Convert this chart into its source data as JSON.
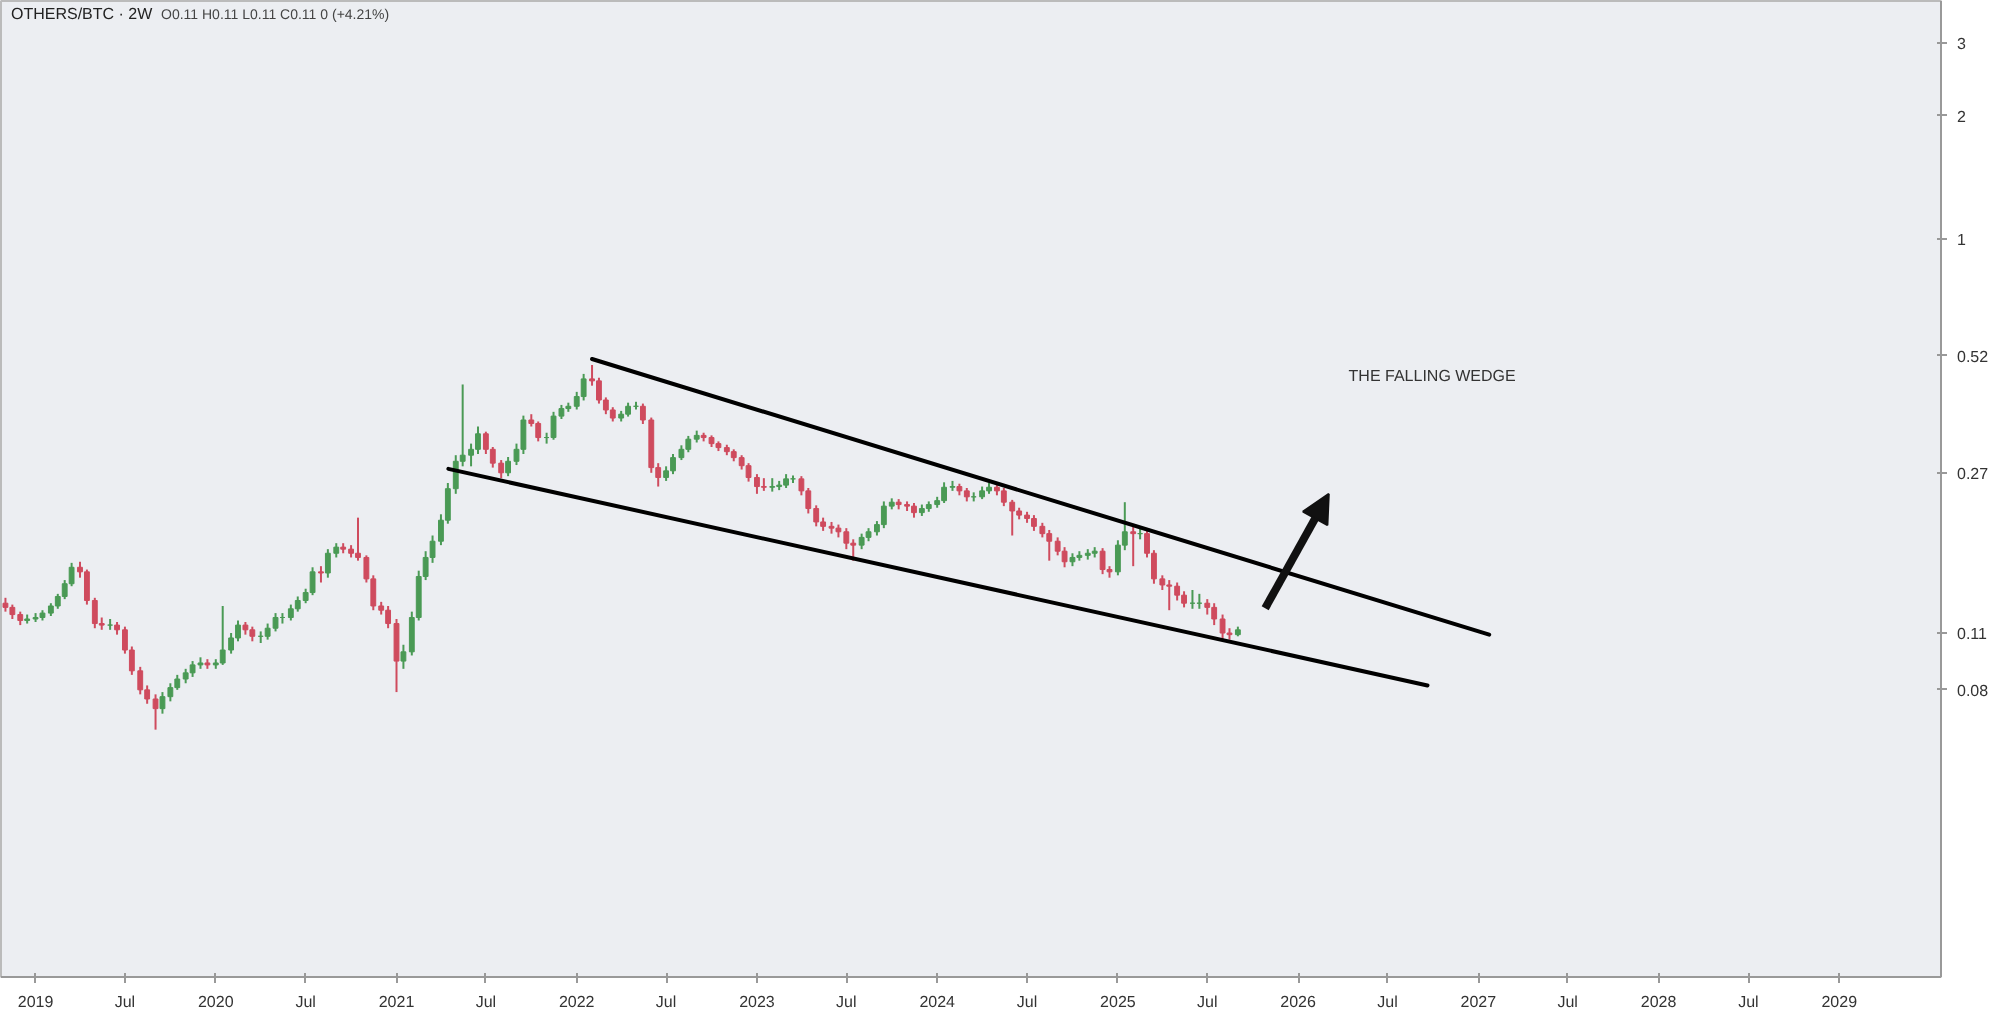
{
  "chart_data": {
    "type": "candlestick",
    "title": "OTHERS/BTC · 2W",
    "subtitle": "O0.11 H0.11 L0.11 C0.11 0 (+4.21%)",
    "log": true,
    "annotations": [
      "THE FALLING WEDGE"
    ],
    "xlim": [
      "2018-10-23",
      "2029-07-26"
    ],
    "ylim": [
      0.016,
      3.8
    ],
    "xticks": [
      {
        "value": "2019-01-01",
        "label": "2019"
      },
      {
        "value": "2019-07-01",
        "label": "Jul"
      },
      {
        "value": "2020-01-01",
        "label": "2020"
      },
      {
        "value": "2020-07-01",
        "label": "Jul"
      },
      {
        "value": "2021-01-01",
        "label": "2021"
      },
      {
        "value": "2021-07-01",
        "label": "Jul"
      },
      {
        "value": "2022-01-01",
        "label": "2022"
      },
      {
        "value": "2022-07-01",
        "label": "Jul"
      },
      {
        "value": "2023-01-01",
        "label": "2023"
      },
      {
        "value": "2023-07-01",
        "label": "Jul"
      },
      {
        "value": "2024-01-01",
        "label": "2024"
      },
      {
        "value": "2024-07-01",
        "label": "Jul"
      },
      {
        "value": "2025-01-01",
        "label": "2025"
      },
      {
        "value": "2025-07-01",
        "label": "Jul"
      },
      {
        "value": "2026-01-01",
        "label": "2026"
      },
      {
        "value": "2026-07-01",
        "label": "Jul"
      },
      {
        "value": "2027-01-01",
        "label": "2027"
      },
      {
        "value": "2027-07-01",
        "label": "Jul"
      },
      {
        "value": "2028-01-01",
        "label": "2028"
      },
      {
        "value": "2028-07-01",
        "label": "Jul"
      },
      {
        "value": "2029-01-01",
        "label": "2029"
      }
    ],
    "yticks": [
      3,
      2,
      1,
      0.52,
      0.27,
      0.11,
      0.08
    ],
    "series": [
      {
        "colors": [
          "#cf4b5e",
          "#cf4b5e",
          "#cf4b5e",
          "#4a9a55",
          "#4a9a55",
          "#4a9a55",
          "#4a9a55",
          "#4a9a55",
          "#4a9a55",
          "#4a9a55",
          "#cf4b5e",
          "#cf4b5e",
          "#cf4b5e",
          "#cf4b5e",
          "#4a9a55",
          "#cf4b5e",
          "#cf4b5e",
          "#cf4b5e",
          "#cf4b5e",
          "#cf4b5e",
          "#cf4b5e",
          "#4a9a55",
          "#4a9a55",
          "#4a9a55",
          "#4a9a55",
          "#4a9a55",
          "#4a9a55",
          "#cf4b5e",
          "#4a9a55",
          "#4a9a55",
          "#4a9a55",
          "#4a9a55",
          "#cf4b5e",
          "#cf4b5e",
          "#4a9a55",
          "#4a9a55",
          "#4a9a55",
          "#4a9a55",
          "#4a9a55",
          "#4a9a55",
          "#4a9a55",
          "#4a9a55",
          "#cf4b5e",
          "#4a9a55",
          "#4a9a55",
          "#cf4b5e",
          "#cf4b5e",
          "#cf4b5e",
          "#cf4b5e",
          "#cf4b5e",
          "#cf4b5e",
          "#cf4b5e",
          "#cf4b5e",
          "#4a9a55",
          "#4a9a55",
          "#4a9a55",
          "#4a9a55",
          "#4a9a55",
          "#4a9a55",
          "#4a9a55",
          "#4a9a55",
          "#4a9a55",
          "#4a9a55",
          "#4a9a55",
          "#cf4b5e",
          "#cf4b5e",
          "#cf4b5e",
          "#4a9a55",
          "#4a9a55",
          "#4a9a55",
          "#cf4b5e",
          "#cf4b5e",
          "#4a9a55",
          "#4a9a55",
          "#4a9a55",
          "#4a9a55",
          "#4a9a55",
          "#4a9a55",
          "#cf4b5e",
          "#cf4b5e",
          "#cf4b5e",
          "#cf4b5e",
          "#4a9a55",
          "#4a9a55",
          "#4a9a55",
          "#cf4b5e",
          "#cf4b5e",
          "#cf4b5e",
          "#4a9a55",
          "#4a9a55",
          "#4a9a55",
          "#4a9a55",
          "#4a9a55",
          "#cf4b5e",
          "#cf4b5e",
          "#cf4b5e",
          "#cf4b5e",
          "#cf4b5e",
          "#cf4b5e",
          "#cf4b5e",
          "#cf4b5e",
          "#cf4b5e",
          "#4a9a55",
          "#4a9a55",
          "#4a9a55",
          "#4a9a55",
          "#cf4b5e",
          "#cf4b5e",
          "#cf4b5e",
          "#cf4b5e",
          "#cf4b5e",
          "#cf4b5e",
          "#cf4b5e",
          "#cf4b5e",
          "#4a9a55",
          "#4a9a55",
          "#4a9a55",
          "#4a9a55",
          "#4a9a55",
          "#cf4b5e",
          "#cf4b5e",
          "#cf4b5e",
          "#4a9a55",
          "#4a9a55",
          "#4a9a55",
          "#4a9a55",
          "#4a9a55",
          "#cf4b5e",
          "#cf4b5e",
          "#4a9a55",
          "#4a9a55",
          "#4a9a55",
          "#cf4b5e",
          "#cf4b5e",
          "#cf4b5e",
          "#cf4b5e",
          "#cf4b5e",
          "#cf4b5e",
          "#cf4b5e",
          "#cf4b5e",
          "#cf4b5e",
          "#cf4b5e",
          "#4a9a55",
          "#4a9a55",
          "#4a9a55",
          "#4a9a55",
          "#cf4b5e",
          "#cf4b5e",
          "#4a9a55",
          "#4a9a55",
          "#cf4b5e",
          "#4a9a55",
          "#cf4b5e",
          "#cf4b5e",
          "#cf4b5e",
          "#cf4b5e",
          "#cf4b5e",
          "#cf4b5e",
          "#4a9a55",
          "#4a9a55",
          "#cf4b5e",
          "#cf4b5e",
          "#cf4b5e",
          "#cf4b5e",
          "#4a9a55"
        ],
        "x": [
          "2018-11-01",
          "2018-11-15",
          "2018-12-01",
          "2018-12-15",
          "2019-01-01",
          "2019-01-15",
          "2019-02-01",
          "2019-02-15",
          "2019-03-01",
          "2019-03-15",
          "2019-04-01",
          "2019-04-15",
          "2019-05-01",
          "2019-05-15",
          "2019-06-01",
          "2019-06-15",
          "2019-07-01",
          "2019-07-15",
          "2019-08-01",
          "2019-08-15",
          "2019-09-01",
          "2019-09-15",
          "2019-10-01",
          "2019-10-15",
          "2019-11-01",
          "2019-11-15",
          "2019-12-01",
          "2019-12-15",
          "2020-01-01",
          "2020-01-15",
          "2020-02-01",
          "2020-02-15",
          "2020-03-01",
          "2020-03-15",
          "2020-04-01",
          "2020-04-15",
          "2020-05-01",
          "2020-05-15",
          "2020-06-01",
          "2020-06-15",
          "2020-07-01",
          "2020-07-15",
          "2020-08-01",
          "2020-08-15",
          "2020-09-01",
          "2020-09-15",
          "2020-10-01",
          "2020-10-15",
          "2020-11-01",
          "2020-11-15",
          "2020-12-01",
          "2020-12-15",
          "2021-01-01",
          "2021-01-15",
          "2021-02-01",
          "2021-02-15",
          "2021-03-01",
          "2021-03-15",
          "2021-04-01",
          "2021-04-15",
          "2021-05-01",
          "2021-05-15",
          "2021-06-01",
          "2021-06-15",
          "2021-07-01",
          "2021-07-15",
          "2021-08-01",
          "2021-08-15",
          "2021-09-01",
          "2021-09-15",
          "2021-10-01",
          "2021-10-15",
          "2021-11-01",
          "2021-11-15",
          "2021-12-01",
          "2021-12-15",
          "2022-01-01",
          "2022-01-15",
          "2022-02-01",
          "2022-02-15",
          "2022-03-01",
          "2022-03-15",
          "2022-04-01",
          "2022-04-15",
          "2022-05-01",
          "2022-05-15",
          "2022-06-01",
          "2022-06-15",
          "2022-07-01",
          "2022-07-15",
          "2022-08-01",
          "2022-08-15",
          "2022-09-01",
          "2022-09-15",
          "2022-10-01",
          "2022-10-15",
          "2022-11-01",
          "2022-11-15",
          "2022-12-01",
          "2022-12-15",
          "2023-01-01",
          "2023-01-15",
          "2023-02-01",
          "2023-02-15",
          "2023-03-01",
          "2023-03-15",
          "2023-04-01",
          "2023-04-15",
          "2023-05-01",
          "2023-05-15",
          "2023-06-01",
          "2023-06-15",
          "2023-07-01",
          "2023-07-15",
          "2023-08-01",
          "2023-08-15",
          "2023-09-01",
          "2023-09-15",
          "2023-10-01",
          "2023-10-15",
          "2023-11-01",
          "2023-11-15",
          "2023-12-01",
          "2023-12-15",
          "2024-01-01",
          "2024-01-15",
          "2024-02-01",
          "2024-02-15",
          "2024-03-01",
          "2024-03-15",
          "2024-04-01",
          "2024-04-15",
          "2024-05-01",
          "2024-05-15",
          "2024-06-01",
          "2024-06-15",
          "2024-07-01",
          "2024-07-15",
          "2024-08-01",
          "2024-08-15",
          "2024-09-01",
          "2024-09-15",
          "2024-10-01",
          "2024-10-15",
          "2024-11-01",
          "2024-11-15",
          "2024-12-01",
          "2024-12-15",
          "2025-01-01",
          "2025-01-15",
          "2025-02-01",
          "2025-02-15",
          "2025-03-01",
          "2025-03-15",
          "2025-04-01",
          "2025-04-15",
          "2025-05-01",
          "2025-05-15",
          "2025-06-01",
          "2025-06-15",
          "2025-07-01",
          "2025-07-15",
          "2025-08-01",
          "2025-08-15",
          "2025-09-01"
        ],
        "ohlc": [
          [
            0.13,
            0.134,
            0.124,
            0.127
          ],
          [
            0.127,
            0.129,
            0.119,
            0.122
          ],
          [
            0.122,
            0.124,
            0.115,
            0.118
          ],
          [
            0.118,
            0.122,
            0.116,
            0.119
          ],
          [
            0.119,
            0.123,
            0.117,
            0.12
          ],
          [
            0.12,
            0.125,
            0.118,
            0.123
          ],
          [
            0.123,
            0.13,
            0.121,
            0.128
          ],
          [
            0.128,
            0.137,
            0.126,
            0.135
          ],
          [
            0.135,
            0.148,
            0.133,
            0.145
          ],
          [
            0.145,
            0.163,
            0.143,
            0.159
          ],
          [
            0.159,
            0.164,
            0.15,
            0.155
          ],
          [
            0.155,
            0.157,
            0.129,
            0.132
          ],
          [
            0.132,
            0.134,
            0.113,
            0.116
          ],
          [
            0.116,
            0.12,
            0.112,
            0.115
          ],
          [
            0.115,
            0.119,
            0.112,
            0.115
          ],
          [
            0.115,
            0.117,
            0.109,
            0.112
          ],
          [
            0.112,
            0.114,
            0.098,
            0.1
          ],
          [
            0.1,
            0.102,
            0.087,
            0.089
          ],
          [
            0.089,
            0.091,
            0.078,
            0.08
          ],
          [
            0.08,
            0.082,
            0.074,
            0.076
          ],
          [
            0.076,
            0.078,
            0.064,
            0.072
          ],
          [
            0.072,
            0.079,
            0.07,
            0.077
          ],
          [
            0.077,
            0.083,
            0.075,
            0.081
          ],
          [
            0.081,
            0.087,
            0.08,
            0.085
          ],
          [
            0.085,
            0.09,
            0.083,
            0.088
          ],
          [
            0.088,
            0.094,
            0.086,
            0.092
          ],
          [
            0.092,
            0.096,
            0.09,
            0.093
          ],
          [
            0.093,
            0.095,
            0.09,
            0.092
          ],
          [
            0.092,
            0.095,
            0.09,
            0.093
          ],
          [
            0.093,
            0.128,
            0.092,
            0.1
          ],
          [
            0.1,
            0.11,
            0.098,
            0.107
          ],
          [
            0.107,
            0.118,
            0.105,
            0.115
          ],
          [
            0.115,
            0.117,
            0.109,
            0.112
          ],
          [
            0.112,
            0.114,
            0.105,
            0.108
          ],
          [
            0.108,
            0.111,
            0.104,
            0.108
          ],
          [
            0.108,
            0.116,
            0.106,
            0.113
          ],
          [
            0.113,
            0.123,
            0.111,
            0.12
          ],
          [
            0.12,
            0.123,
            0.116,
            0.12
          ],
          [
            0.12,
            0.129,
            0.118,
            0.126
          ],
          [
            0.126,
            0.135,
            0.124,
            0.132
          ],
          [
            0.132,
            0.141,
            0.13,
            0.138
          ],
          [
            0.138,
            0.159,
            0.136,
            0.155
          ],
          [
            0.155,
            0.16,
            0.146,
            0.154
          ],
          [
            0.154,
            0.176,
            0.15,
            0.172
          ],
          [
            0.172,
            0.182,
            0.168,
            0.178
          ],
          [
            0.178,
            0.182,
            0.172,
            0.176
          ],
          [
            0.176,
            0.18,
            0.168,
            0.172
          ],
          [
            0.172,
            0.21,
            0.165,
            0.168
          ],
          [
            0.168,
            0.17,
            0.146,
            0.149
          ],
          [
            0.149,
            0.152,
            0.125,
            0.128
          ],
          [
            0.128,
            0.131,
            0.122,
            0.125
          ],
          [
            0.125,
            0.128,
            0.113,
            0.116
          ],
          [
            0.116,
            0.119,
            0.079,
            0.094
          ],
          [
            0.094,
            0.103,
            0.09,
            0.099
          ],
          [
            0.099,
            0.124,
            0.097,
            0.12
          ],
          [
            0.12,
            0.156,
            0.118,
            0.151
          ],
          [
            0.151,
            0.174,
            0.148,
            0.168
          ],
          [
            0.168,
            0.19,
            0.163,
            0.184
          ],
          [
            0.184,
            0.214,
            0.18,
            0.207
          ],
          [
            0.207,
            0.255,
            0.203,
            0.247
          ],
          [
            0.247,
            0.298,
            0.24,
            0.288
          ],
          [
            0.288,
            0.443,
            0.28,
            0.298
          ],
          [
            0.298,
            0.318,
            0.28,
            0.308
          ],
          [
            0.308,
            0.35,
            0.3,
            0.336
          ],
          [
            0.336,
            0.34,
            0.3,
            0.308
          ],
          [
            0.308,
            0.312,
            0.278,
            0.285
          ],
          [
            0.285,
            0.29,
            0.262,
            0.27
          ],
          [
            0.27,
            0.295,
            0.265,
            0.288
          ],
          [
            0.288,
            0.318,
            0.282,
            0.308
          ],
          [
            0.308,
            0.372,
            0.3,
            0.363
          ],
          [
            0.363,
            0.375,
            0.35,
            0.356
          ],
          [
            0.356,
            0.36,
            0.322,
            0.329
          ],
          [
            0.329,
            0.338,
            0.318,
            0.329
          ],
          [
            0.329,
            0.38,
            0.325,
            0.371
          ],
          [
            0.371,
            0.395,
            0.365,
            0.387
          ],
          [
            0.387,
            0.4,
            0.38,
            0.392
          ],
          [
            0.392,
            0.425,
            0.385,
            0.414
          ],
          [
            0.414,
            0.47,
            0.405,
            0.457
          ],
          [
            0.457,
            0.494,
            0.44,
            0.452
          ],
          [
            0.452,
            0.46,
            0.398,
            0.406
          ],
          [
            0.406,
            0.412,
            0.375,
            0.384
          ],
          [
            0.384,
            0.39,
            0.36,
            0.367
          ],
          [
            0.367,
            0.382,
            0.36,
            0.375
          ],
          [
            0.375,
            0.4,
            0.37,
            0.392
          ],
          [
            0.392,
            0.402,
            0.385,
            0.392
          ],
          [
            0.392,
            0.398,
            0.355,
            0.363
          ],
          [
            0.363,
            0.368,
            0.27,
            0.278
          ],
          [
            0.278,
            0.285,
            0.25,
            0.263
          ],
          [
            0.263,
            0.28,
            0.258,
            0.273
          ],
          [
            0.273,
            0.3,
            0.268,
            0.294
          ],
          [
            0.294,
            0.315,
            0.29,
            0.308
          ],
          [
            0.308,
            0.332,
            0.303,
            0.326
          ],
          [
            0.326,
            0.342,
            0.32,
            0.333
          ],
          [
            0.333,
            0.338,
            0.322,
            0.329
          ],
          [
            0.329,
            0.333,
            0.312,
            0.318
          ],
          [
            0.318,
            0.322,
            0.305,
            0.311
          ],
          [
            0.311,
            0.316,
            0.298,
            0.304
          ],
          [
            0.304,
            0.308,
            0.288,
            0.294
          ],
          [
            0.294,
            0.298,
            0.275,
            0.281
          ],
          [
            0.281,
            0.285,
            0.257,
            0.263
          ],
          [
            0.263,
            0.268,
            0.24,
            0.25
          ],
          [
            0.25,
            0.262,
            0.244,
            0.249
          ],
          [
            0.249,
            0.262,
            0.243,
            0.25
          ],
          [
            0.25,
            0.258,
            0.245,
            0.252
          ],
          [
            0.252,
            0.268,
            0.248,
            0.261
          ],
          [
            0.261,
            0.266,
            0.255,
            0.261
          ],
          [
            0.261,
            0.265,
            0.238,
            0.244
          ],
          [
            0.244,
            0.248,
            0.215,
            0.221
          ],
          [
            0.221,
            0.225,
            0.2,
            0.205
          ],
          [
            0.205,
            0.21,
            0.195,
            0.2
          ],
          [
            0.2,
            0.205,
            0.192,
            0.198
          ],
          [
            0.198,
            0.202,
            0.188,
            0.194
          ],
          [
            0.194,
            0.198,
            0.176,
            0.182
          ],
          [
            0.182,
            0.186,
            0.165,
            0.18
          ],
          [
            0.18,
            0.192,
            0.176,
            0.188
          ],
          [
            0.188,
            0.198,
            0.184,
            0.194
          ],
          [
            0.194,
            0.206,
            0.19,
            0.202
          ],
          [
            0.202,
            0.23,
            0.198,
            0.224
          ],
          [
            0.224,
            0.234,
            0.22,
            0.229
          ],
          [
            0.229,
            0.233,
            0.22,
            0.226
          ],
          [
            0.226,
            0.23,
            0.218,
            0.224
          ],
          [
            0.224,
            0.228,
            0.21,
            0.216
          ],
          [
            0.216,
            0.226,
            0.212,
            0.221
          ],
          [
            0.221,
            0.23,
            0.217,
            0.226
          ],
          [
            0.226,
            0.236,
            0.222,
            0.231
          ],
          [
            0.231,
            0.256,
            0.228,
            0.249
          ],
          [
            0.249,
            0.258,
            0.244,
            0.25
          ],
          [
            0.25,
            0.254,
            0.238,
            0.244
          ],
          [
            0.244,
            0.248,
            0.23,
            0.236
          ],
          [
            0.236,
            0.242,
            0.23,
            0.236
          ],
          [
            0.236,
            0.25,
            0.233,
            0.244
          ],
          [
            0.244,
            0.255,
            0.24,
            0.249
          ],
          [
            0.249,
            0.253,
            0.238,
            0.244
          ],
          [
            0.244,
            0.248,
            0.224,
            0.229
          ],
          [
            0.229,
            0.232,
            0.19,
            0.218
          ],
          [
            0.218,
            0.222,
            0.208,
            0.213
          ],
          [
            0.213,
            0.217,
            0.204,
            0.209
          ],
          [
            0.209,
            0.213,
            0.195,
            0.2
          ],
          [
            0.2,
            0.204,
            0.188,
            0.192
          ],
          [
            0.192,
            0.196,
            0.165,
            0.184
          ],
          [
            0.184,
            0.188,
            0.17,
            0.174
          ],
          [
            0.174,
            0.178,
            0.159,
            0.164
          ],
          [
            0.164,
            0.172,
            0.16,
            0.168
          ],
          [
            0.168,
            0.174,
            0.165,
            0.17
          ],
          [
            0.17,
            0.176,
            0.166,
            0.172
          ],
          [
            0.172,
            0.178,
            0.168,
            0.174
          ],
          [
            0.174,
            0.177,
            0.153,
            0.157
          ],
          [
            0.157,
            0.16,
            0.15,
            0.155
          ],
          [
            0.155,
            0.185,
            0.152,
            0.18
          ],
          [
            0.18,
            0.229,
            0.175,
            0.194
          ],
          [
            0.194,
            0.2,
            0.16,
            0.192
          ],
          [
            0.192,
            0.198,
            0.186,
            0.192
          ],
          [
            0.192,
            0.195,
            0.168,
            0.172
          ],
          [
            0.172,
            0.175,
            0.145,
            0.149
          ],
          [
            0.149,
            0.152,
            0.14,
            0.144
          ],
          [
            0.144,
            0.148,
            0.125,
            0.143
          ],
          [
            0.143,
            0.146,
            0.132,
            0.136
          ],
          [
            0.136,
            0.139,
            0.127,
            0.13
          ],
          [
            0.13,
            0.14,
            0.126,
            0.13
          ],
          [
            0.13,
            0.137,
            0.126,
            0.13
          ],
          [
            0.13,
            0.133,
            0.122,
            0.127
          ],
          [
            0.127,
            0.13,
            0.115,
            0.119
          ],
          [
            0.119,
            0.122,
            0.106,
            0.11
          ],
          [
            0.11,
            0.113,
            0.106,
            0.109
          ],
          [
            0.109,
            0.114,
            0.108,
            0.112
          ]
        ]
      },
      {
        "type": "line",
        "color": "#000000",
        "x": [
          "2022-02-01",
          "2027-01-23"
        ],
        "values": [
          0.511,
          0.109
        ]
      },
      {
        "type": "line",
        "color": "#000000",
        "x": [
          "2021-04-16",
          "2026-09-20"
        ],
        "values": [
          0.276,
          0.082
        ]
      }
    ]
  }
}
